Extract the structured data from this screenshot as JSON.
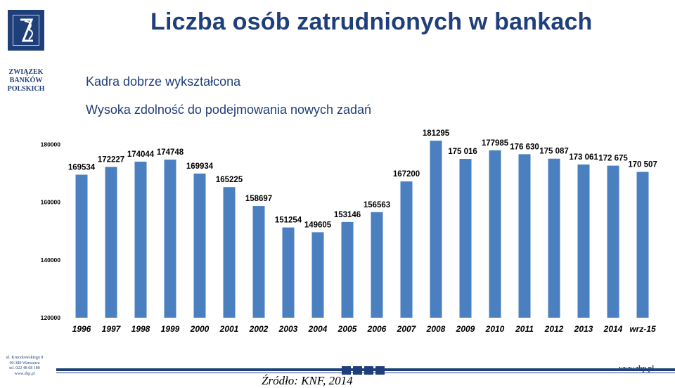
{
  "header": {
    "title": "Liczba osób zatrudnionych w bankach",
    "logo_mark": "ZB",
    "logo_lines": [
      "ZWIĄZEK",
      "BANKÓW",
      "POLSKICH"
    ]
  },
  "bullets": [
    "Kadra dobrze wykształcona",
    "Wysoka zdolność do podejmowania nowych zadań"
  ],
  "footer": {
    "address_lines": [
      "ul. Kruczkowskiego 8",
      "00-380 Warszawa",
      "tel. 022 48 68 180",
      "www.zbp.pl"
    ],
    "website": "www.zbp.pl",
    "source": "Źródło: KNF, 2014"
  },
  "colors": {
    "bar": "#4a7fc0",
    "brand": "#1f3f7a"
  },
  "chart_data": {
    "type": "bar",
    "categories": [
      "1996",
      "1997",
      "1998",
      "1999",
      "2000",
      "2001",
      "2002",
      "2003",
      "2004",
      "2005",
      "2006",
      "2007",
      "2008",
      "2009",
      "2010",
      "2011",
      "2012",
      "2013",
      "2014",
      "wrz-15"
    ],
    "values": [
      169534,
      172227,
      174044,
      174748,
      169934,
      165225,
      158697,
      151254,
      149605,
      153146,
      156563,
      167200,
      181295,
      175016,
      177985,
      176630,
      175087,
      173061,
      172675,
      170507
    ],
    "value_labels": [
      "169534",
      "172227",
      "174044",
      "174748",
      "169934",
      "165225",
      "158697",
      "151254",
      "149605",
      "153146",
      "156563",
      "167200",
      "181295",
      "175 016",
      "177985",
      "176 630",
      "175 087",
      "173 061",
      "172 675",
      "170 507"
    ],
    "ylim": [
      120000,
      185000
    ],
    "yticks": [
      "120000",
      "140000",
      "160000",
      "180000"
    ],
    "title": "",
    "xlabel": "",
    "ylabel": "",
    "legend": "none",
    "grid": false
  }
}
